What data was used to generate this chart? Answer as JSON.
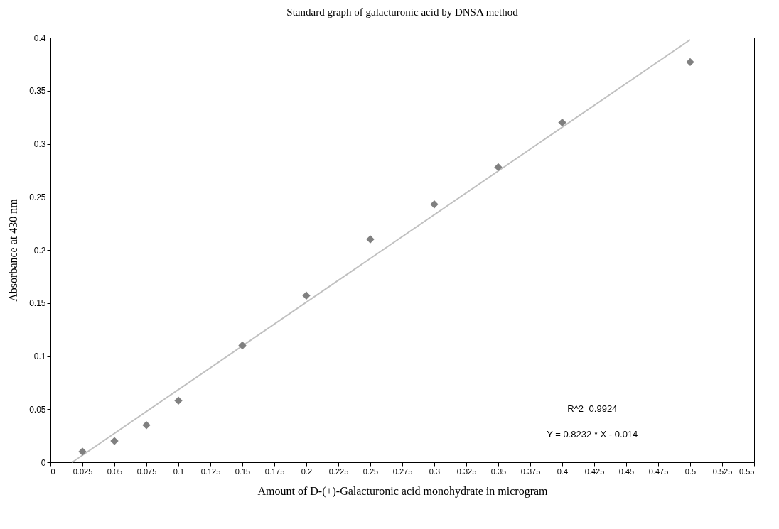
{
  "chart_data": {
    "type": "scatter",
    "title": "Standard graph of galacturonic acid by DNSA method",
    "xlabel": "Amount of D-(+)-Galacturonic acid monohydrate in microgram",
    "ylabel": "Absorbance at 430 nm",
    "x": [
      0.025,
      0.05,
      0.075,
      0.1,
      0.15,
      0.2,
      0.25,
      0.3,
      0.35,
      0.4,
      0.5
    ],
    "series": [
      {
        "color": "#808080",
        "values": [
          0.01,
          0.02,
          0.035,
          0.058,
          0.11,
          0.157,
          0.21,
          0.243,
          0.278,
          0.32,
          0.377
        ]
      },
      {
        "type": "line",
        "marker": "none",
        "color": "#c0c0c0",
        "x": [
          0.017,
          0.5
        ],
        "values": [
          0,
          0.398
        ]
      }
    ],
    "marker": "diamond",
    "grid": false,
    "xlim": [
      0,
      0.55
    ],
    "xticks": [
      0,
      0.025,
      0.05,
      0.075,
      0.1,
      0.125,
      0.15,
      0.175,
      0.2,
      0.225,
      0.25,
      0.275,
      0.3,
      0.325,
      0.35,
      0.375,
      0.4,
      0.425,
      0.45,
      0.475,
      0.5,
      0.525,
      0.55
    ],
    "ylim": [
      0,
      0.4
    ],
    "yticks": [
      0,
      0.05,
      0.1,
      0.15,
      0.2,
      0.25,
      0.3,
      0.35,
      0.4
    ],
    "annotations": [
      "R^2=0.9924",
      "Y = 0.8232 * X - 0.014"
    ]
  }
}
